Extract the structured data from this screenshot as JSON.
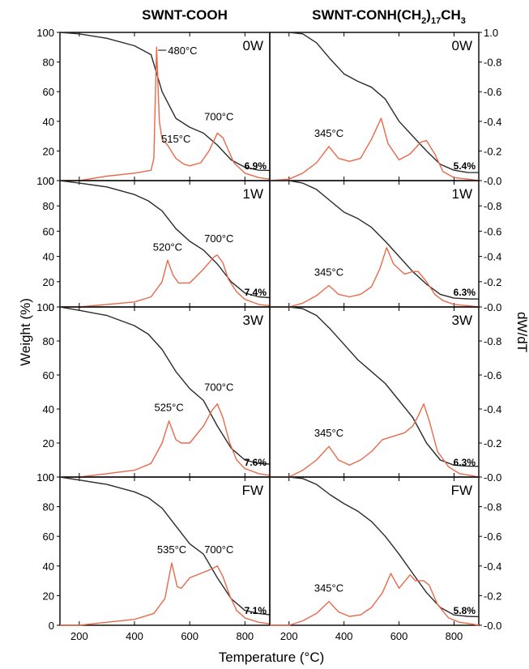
{
  "colors": {
    "weight_curve": "#2b2b2b",
    "derivative_curve": "#e8694a",
    "frame": "#000000"
  },
  "columns": [
    {
      "title": "SWNT-COOH"
    },
    {
      "title_parts": [
        {
          "text": "SWNT-CONH(CH",
          "sub": false
        },
        {
          "text": "2",
          "sub": true
        },
        {
          "text": ")",
          "sub": false
        },
        {
          "text": "17",
          "sub": true
        },
        {
          "text": "CH",
          "sub": false
        },
        {
          "text": "3",
          "sub": true
        }
      ]
    }
  ],
  "axes": {
    "xlabel": "Temperature (°C)",
    "ylabel_left": "Weight (%)",
    "ylabel_right": "dW/dT",
    "x_ticks": [
      "200",
      "400",
      "600",
      "800"
    ],
    "left_ticks": [
      "100",
      "80",
      "60",
      "40",
      "20",
      "0"
    ],
    "right_ticks": [
      "1.0",
      "0.8",
      "0.6",
      "0.4",
      "0.2",
      "0.0"
    ]
  },
  "chart_data": [
    {
      "type": "line",
      "panel": "SWNT-COOH 0W",
      "condition": "0W",
      "residue": "6.9%",
      "xlim": [
        130,
        890
      ],
      "ylim_left": [
        0,
        100
      ],
      "ylim_right": [
        0,
        1.0
      ],
      "annotations": [
        "480°C",
        "515°C",
        "700°C"
      ],
      "series": [
        {
          "axis": "left",
          "x": [
            130,
            200,
            300,
            400,
            460,
            500,
            550,
            600,
            650,
            700,
            750,
            800,
            850,
            890
          ],
          "y": [
            100,
            99,
            96,
            91,
            85,
            60,
            42,
            36,
            32,
            24,
            14,
            9,
            7,
            6.9
          ]
        },
        {
          "axis": "right",
          "x": [
            130,
            200,
            300,
            400,
            460,
            470,
            480,
            490,
            500,
            520,
            550,
            580,
            600,
            640,
            670,
            700,
            720,
            760,
            800,
            850,
            890
          ],
          "y": [
            0,
            0,
            0.03,
            0.05,
            0.07,
            0.15,
            0.9,
            0.4,
            0.28,
            0.24,
            0.15,
            0.11,
            0.1,
            0.12,
            0.2,
            0.32,
            0.29,
            0.12,
            0.05,
            0.02,
            0.01
          ]
        }
      ]
    },
    {
      "type": "line",
      "panel": "SWNT-CONH(CH2)17CH3 0W",
      "condition": "0W",
      "residue": "5.4%",
      "xlim": [
        130,
        890
      ],
      "ylim_left": [
        0,
        100
      ],
      "ylim_right": [
        0,
        1.0
      ],
      "annotations": [
        "345°C"
      ],
      "series": [
        {
          "axis": "left",
          "x": [
            130,
            200,
            250,
            300,
            350,
            400,
            450,
            500,
            550,
            600,
            650,
            700,
            750,
            800,
            850,
            890
          ],
          "y": [
            100,
            100,
            99,
            93,
            82,
            72,
            67,
            63,
            55,
            40,
            30,
            20,
            11,
            7,
            5.5,
            5.4
          ]
        },
        {
          "axis": "right",
          "x": [
            130,
            200,
            250,
            300,
            345,
            380,
            420,
            460,
            500,
            520,
            535,
            560,
            600,
            640,
            680,
            700,
            730,
            760,
            800,
            850,
            890
          ],
          "y": [
            0,
            0.01,
            0.05,
            0.12,
            0.23,
            0.15,
            0.13,
            0.15,
            0.28,
            0.36,
            0.42,
            0.25,
            0.14,
            0.18,
            0.26,
            0.27,
            0.18,
            0.06,
            0.02,
            0.01,
            0.0
          ]
        }
      ]
    },
    {
      "type": "line",
      "panel": "SWNT-COOH 1W",
      "condition": "1W",
      "residue": "7.4%",
      "xlim": [
        130,
        890
      ],
      "ylim_left": [
        0,
        100
      ],
      "ylim_right": [
        0,
        1.0
      ],
      "annotations": [
        "520°C",
        "700°C"
      ],
      "series": [
        {
          "axis": "left",
          "x": [
            130,
            200,
            300,
            400,
            450,
            500,
            550,
            600,
            650,
            700,
            750,
            800,
            850,
            890
          ],
          "y": [
            100,
            98,
            95,
            89,
            84,
            76,
            62,
            52,
            45,
            34,
            20,
            11,
            8,
            7.4
          ]
        },
        {
          "axis": "right",
          "x": [
            130,
            200,
            300,
            400,
            460,
            500,
            520,
            540,
            560,
            600,
            650,
            690,
            700,
            720,
            740,
            770,
            800,
            850,
            890
          ],
          "y": [
            0,
            0,
            0.02,
            0.04,
            0.08,
            0.2,
            0.37,
            0.25,
            0.19,
            0.19,
            0.3,
            0.4,
            0.41,
            0.35,
            0.22,
            0.12,
            0.06,
            0.02,
            0.01
          ]
        }
      ]
    },
    {
      "type": "line",
      "panel": "SWNT-CONH(CH2)17CH3 1W",
      "condition": "1W",
      "residue": "6.3%",
      "xlim": [
        130,
        890
      ],
      "ylim_left": [
        0,
        100
      ],
      "ylim_right": [
        0,
        1.0
      ],
      "annotations": [
        "345°C"
      ],
      "series": [
        {
          "axis": "left",
          "x": [
            130,
            200,
            250,
            300,
            350,
            400,
            450,
            500,
            550,
            600,
            650,
            700,
            750,
            800,
            850,
            890
          ],
          "y": [
            100,
            100,
            98,
            93,
            84,
            75,
            70,
            63,
            52,
            40,
            28,
            18,
            10,
            7,
            6.4,
            6.3
          ]
        },
        {
          "axis": "right",
          "x": [
            130,
            200,
            250,
            300,
            345,
            380,
            420,
            460,
            500,
            530,
            555,
            580,
            620,
            650,
            670,
            700,
            730,
            760,
            800,
            850,
            890
          ],
          "y": [
            0,
            0,
            0.03,
            0.09,
            0.17,
            0.1,
            0.08,
            0.1,
            0.16,
            0.3,
            0.47,
            0.34,
            0.26,
            0.28,
            0.28,
            0.2,
            0.1,
            0.05,
            0.02,
            0.01,
            0.0
          ]
        }
      ]
    },
    {
      "type": "line",
      "panel": "SWNT-COOH 3W",
      "condition": "3W",
      "residue": "7.6%",
      "xlim": [
        130,
        890
      ],
      "ylim_left": [
        0,
        100
      ],
      "ylim_right": [
        0,
        1.0
      ],
      "annotations": [
        "525°C",
        "700°C"
      ],
      "series": [
        {
          "axis": "left",
          "x": [
            130,
            200,
            300,
            400,
            450,
            500,
            550,
            600,
            650,
            700,
            750,
            800,
            850,
            890
          ],
          "y": [
            100,
            98,
            95,
            89,
            84,
            75,
            62,
            52,
            45,
            30,
            17,
            10,
            8,
            7.6
          ]
        },
        {
          "axis": "right",
          "x": [
            130,
            200,
            300,
            400,
            460,
            500,
            525,
            550,
            570,
            600,
            650,
            680,
            700,
            720,
            745,
            770,
            800,
            850,
            890
          ],
          "y": [
            0,
            0,
            0.02,
            0.04,
            0.08,
            0.2,
            0.33,
            0.22,
            0.2,
            0.2,
            0.3,
            0.39,
            0.43,
            0.35,
            0.2,
            0.1,
            0.05,
            0.02,
            0.01
          ]
        }
      ]
    },
    {
      "type": "line",
      "panel": "SWNT-CONH(CH2)17CH3 3W",
      "condition": "3W",
      "residue": "6.3%",
      "xlim": [
        130,
        890
      ],
      "ylim_left": [
        0,
        100
      ],
      "ylim_right": [
        0,
        1.0
      ],
      "annotations": [
        "345°C"
      ],
      "series": [
        {
          "axis": "left",
          "x": [
            130,
            200,
            250,
            300,
            350,
            400,
            450,
            500,
            550,
            600,
            650,
            700,
            750,
            800,
            850,
            890
          ],
          "y": [
            100,
            100,
            99,
            95,
            87,
            78,
            69,
            62,
            55,
            45,
            35,
            20,
            10,
            7,
            6.4,
            6.3
          ]
        },
        {
          "axis": "right",
          "x": [
            130,
            200,
            250,
            300,
            345,
            380,
            420,
            460,
            500,
            540,
            580,
            620,
            650,
            670,
            690,
            710,
            740,
            780,
            820,
            860,
            890
          ],
          "y": [
            0,
            0,
            0.04,
            0.1,
            0.18,
            0.1,
            0.07,
            0.1,
            0.15,
            0.22,
            0.24,
            0.26,
            0.3,
            0.36,
            0.43,
            0.33,
            0.15,
            0.06,
            0.02,
            0.01,
            0.0
          ]
        }
      ]
    },
    {
      "type": "line",
      "panel": "SWNT-COOH FW",
      "condition": "FW",
      "residue": "7.1%",
      "xlim": [
        130,
        890
      ],
      "ylim_left": [
        0,
        100
      ],
      "ylim_right": [
        0,
        1.0
      ],
      "annotations": [
        "535°C",
        "700°C"
      ],
      "series": [
        {
          "axis": "left",
          "x": [
            130,
            200,
            300,
            400,
            450,
            500,
            550,
            600,
            650,
            700,
            750,
            800,
            850,
            890
          ],
          "y": [
            100,
            98,
            95,
            90,
            86,
            79,
            67,
            55,
            48,
            32,
            18,
            10,
            8,
            7.1
          ]
        },
        {
          "axis": "right",
          "x": [
            130,
            200,
            300,
            400,
            470,
            510,
            535,
            555,
            570,
            600,
            640,
            680,
            700,
            720,
            745,
            770,
            800,
            850,
            890
          ],
          "y": [
            0,
            0,
            0.02,
            0.04,
            0.08,
            0.18,
            0.42,
            0.26,
            0.25,
            0.32,
            0.35,
            0.38,
            0.4,
            0.33,
            0.2,
            0.1,
            0.05,
            0.02,
            0.01
          ]
        }
      ]
    },
    {
      "type": "line",
      "panel": "SWNT-CONH(CH2)17CH3 FW",
      "condition": "FW",
      "residue": "5.8%",
      "xlim": [
        130,
        890
      ],
      "ylim_left": [
        0,
        100
      ],
      "ylim_right": [
        0,
        1.0
      ],
      "annotations": [
        "345°C"
      ],
      "series": [
        {
          "axis": "left",
          "x": [
            130,
            200,
            250,
            300,
            350,
            400,
            450,
            500,
            550,
            600,
            650,
            700,
            750,
            800,
            850,
            890
          ],
          "y": [
            100,
            100,
            99,
            95,
            88,
            82,
            77,
            70,
            60,
            48,
            35,
            22,
            12,
            7,
            6,
            5.8
          ]
        },
        {
          "axis": "right",
          "x": [
            130,
            200,
            250,
            300,
            345,
            380,
            420,
            460,
            500,
            540,
            570,
            600,
            640,
            660,
            690,
            710,
            740,
            780,
            820,
            860,
            890
          ],
          "y": [
            0,
            0,
            0.03,
            0.08,
            0.16,
            0.09,
            0.06,
            0.07,
            0.12,
            0.22,
            0.35,
            0.25,
            0.34,
            0.3,
            0.3,
            0.27,
            0.14,
            0.05,
            0.02,
            0.01,
            0.0
          ]
        }
      ]
    }
  ]
}
